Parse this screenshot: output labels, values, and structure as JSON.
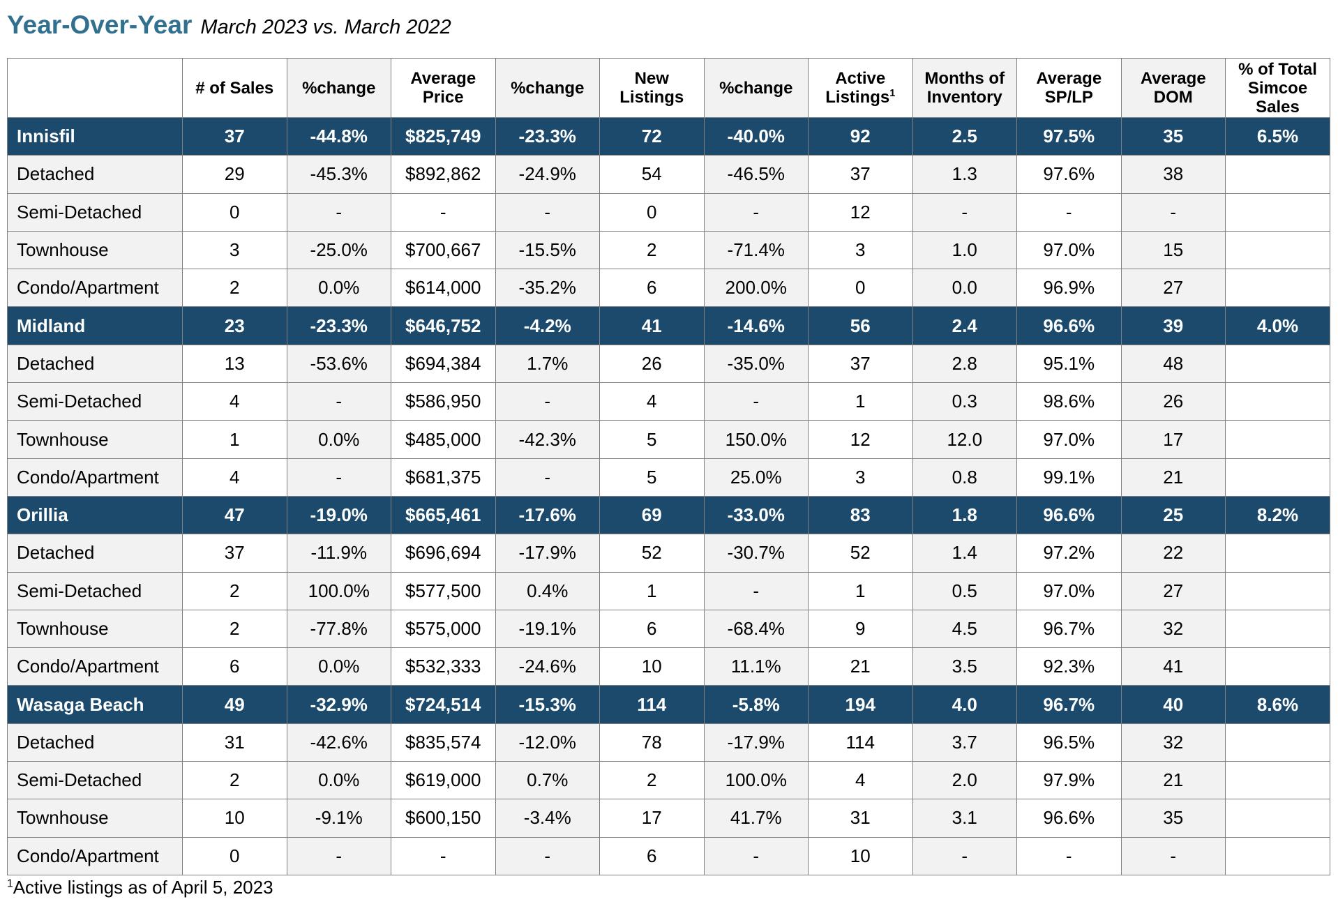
{
  "heading": {
    "title": "Year-Over-Year",
    "subtitle": "March 2023 vs. March 2022"
  },
  "colors": {
    "title": "#31708e",
    "region_row": "#1b4a6c",
    "region_text": "#ffffff",
    "shaded_column": "#f2f2f2",
    "border": "#808080"
  },
  "table": {
    "columns": [
      {
        "lines": [
          "# of Sales"
        ]
      },
      {
        "lines": [
          "%change"
        ]
      },
      {
        "lines": [
          "Average",
          "Price"
        ]
      },
      {
        "lines": [
          "%change"
        ]
      },
      {
        "lines": [
          "New",
          "Listings"
        ]
      },
      {
        "lines": [
          "%change"
        ]
      },
      {
        "lines": [
          "Active",
          "Listings"
        ],
        "sup": "1"
      },
      {
        "lines": [
          "Months of",
          "Inventory"
        ]
      },
      {
        "lines": [
          "Average",
          "SP/LP"
        ]
      },
      {
        "lines": [
          "Average",
          "DOM"
        ]
      },
      {
        "lines": [
          "% of Total",
          "Simcoe",
          "Sales"
        ]
      }
    ],
    "regions": [
      {
        "name": "Innisfil",
        "values": [
          "37",
          "-44.8%",
          "$825,749",
          "-23.3%",
          "72",
          "-40.0%",
          "92",
          "2.5",
          "97.5%",
          "35",
          "6.5%"
        ],
        "types": [
          {
            "label": "Detached",
            "values": [
              "29",
              "-45.3%",
              "$892,862",
              "-24.9%",
              "54",
              "-46.5%",
              "37",
              "1.3",
              "97.6%",
              "38"
            ]
          },
          {
            "label": "Semi-Detached",
            "values": [
              "0",
              "-",
              "-",
              "-",
              "0",
              "-",
              "12",
              "-",
              "-",
              "-"
            ]
          },
          {
            "label": "Townhouse",
            "values": [
              "3",
              "-25.0%",
              "$700,667",
              "-15.5%",
              "2",
              "-71.4%",
              "3",
              "1.0",
              "97.0%",
              "15"
            ]
          },
          {
            "label": "Condo/Apartment",
            "values": [
              "2",
              "0.0%",
              "$614,000",
              "-35.2%",
              "6",
              "200.0%",
              "0",
              "0.0",
              "96.9%",
              "27"
            ]
          }
        ]
      },
      {
        "name": "Midland",
        "values": [
          "23",
          "-23.3%",
          "$646,752",
          "-4.2%",
          "41",
          "-14.6%",
          "56",
          "2.4",
          "96.6%",
          "39",
          "4.0%"
        ],
        "types": [
          {
            "label": "Detached",
            "values": [
              "13",
              "-53.6%",
              "$694,384",
              "1.7%",
              "26",
              "-35.0%",
              "37",
              "2.8",
              "95.1%",
              "48"
            ]
          },
          {
            "label": "Semi-Detached",
            "values": [
              "4",
              "-",
              "$586,950",
              "-",
              "4",
              "-",
              "1",
              "0.3",
              "98.6%",
              "26"
            ]
          },
          {
            "label": "Townhouse",
            "values": [
              "1",
              "0.0%",
              "$485,000",
              "-42.3%",
              "5",
              "150.0%",
              "12",
              "12.0",
              "97.0%",
              "17"
            ]
          },
          {
            "label": "Condo/Apartment",
            "values": [
              "4",
              "-",
              "$681,375",
              "-",
              "5",
              "25.0%",
              "3",
              "0.8",
              "99.1%",
              "21"
            ]
          }
        ]
      },
      {
        "name": "Orillia",
        "values": [
          "47",
          "-19.0%",
          "$665,461",
          "-17.6%",
          "69",
          "-33.0%",
          "83",
          "1.8",
          "96.6%",
          "25",
          "8.2%"
        ],
        "types": [
          {
            "label": "Detached",
            "values": [
              "37",
              "-11.9%",
              "$696,694",
              "-17.9%",
              "52",
              "-30.7%",
              "52",
              "1.4",
              "97.2%",
              "22"
            ]
          },
          {
            "label": "Semi-Detached",
            "values": [
              "2",
              "100.0%",
              "$577,500",
              "0.4%",
              "1",
              "-",
              "1",
              "0.5",
              "97.0%",
              "27"
            ]
          },
          {
            "label": "Townhouse",
            "values": [
              "2",
              "-77.8%",
              "$575,000",
              "-19.1%",
              "6",
              "-68.4%",
              "9",
              "4.5",
              "96.7%",
              "32"
            ]
          },
          {
            "label": "Condo/Apartment",
            "values": [
              "6",
              "0.0%",
              "$532,333",
              "-24.6%",
              "10",
              "11.1%",
              "21",
              "3.5",
              "92.3%",
              "41"
            ]
          }
        ]
      },
      {
        "name": "Wasaga Beach",
        "values": [
          "49",
          "-32.9%",
          "$724,514",
          "-15.3%",
          "114",
          "-5.8%",
          "194",
          "4.0",
          "96.7%",
          "40",
          "8.6%"
        ],
        "types": [
          {
            "label": "Detached",
            "values": [
              "31",
              "-42.6%",
              "$835,574",
              "-12.0%",
              "78",
              "-17.9%",
              "114",
              "3.7",
              "96.5%",
              "32"
            ]
          },
          {
            "label": "Semi-Detached",
            "values": [
              "2",
              "0.0%",
              "$619,000",
              "0.7%",
              "2",
              "100.0%",
              "4",
              "2.0",
              "97.9%",
              "21"
            ]
          },
          {
            "label": "Townhouse",
            "values": [
              "10",
              "-9.1%",
              "$600,150",
              "-3.4%",
              "17",
              "41.7%",
              "31",
              "3.1",
              "96.6%",
              "35"
            ]
          },
          {
            "label": "Condo/Apartment",
            "values": [
              "0",
              "-",
              "-",
              "-",
              "6",
              "-",
              "10",
              "-",
              "-",
              "-"
            ]
          }
        ]
      }
    ]
  },
  "footnote": {
    "marker": "1",
    "text": "Active listings as of April 5, 2023"
  }
}
